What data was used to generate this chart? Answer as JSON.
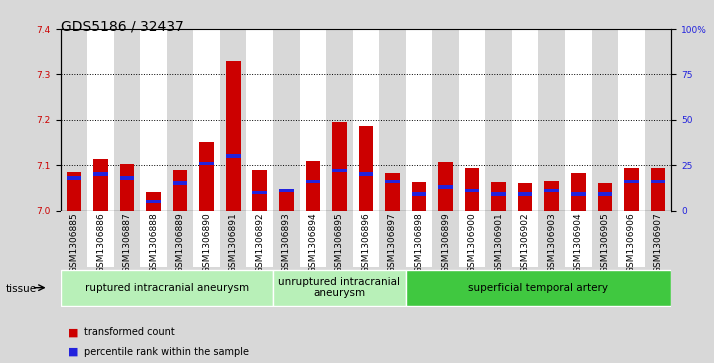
{
  "title": "GDS5186 / 32437",
  "samples": [
    "GSM1306885",
    "GSM1306886",
    "GSM1306887",
    "GSM1306888",
    "GSM1306889",
    "GSM1306890",
    "GSM1306891",
    "GSM1306892",
    "GSM1306893",
    "GSM1306894",
    "GSM1306895",
    "GSM1306896",
    "GSM1306897",
    "GSM1306898",
    "GSM1306899",
    "GSM1306900",
    "GSM1306901",
    "GSM1306902",
    "GSM1306903",
    "GSM1306904",
    "GSM1306905",
    "GSM1306906",
    "GSM1306907"
  ],
  "transformed_count": [
    7.085,
    7.113,
    7.102,
    7.04,
    7.09,
    7.152,
    7.33,
    7.09,
    7.04,
    7.11,
    7.195,
    7.187,
    7.083,
    7.063,
    7.107,
    7.093,
    7.063,
    7.06,
    7.065,
    7.082,
    7.06,
    7.093,
    7.093
  ],
  "percentile_rank": [
    18,
    20,
    18,
    5,
    15,
    26,
    30,
    10,
    11,
    16,
    22,
    20,
    16,
    9,
    13,
    11,
    9,
    9,
    11,
    9,
    9,
    16,
    16
  ],
  "ylim_left": [
    7.0,
    7.4
  ],
  "ylim_right": [
    0,
    100
  ],
  "yticks_left": [
    7.0,
    7.1,
    7.2,
    7.3,
    7.4
  ],
  "yticks_right": [
    0,
    25,
    50,
    75,
    100
  ],
  "ytick_labels_right": [
    "0",
    "25",
    "50",
    "75",
    "100%"
  ],
  "groups": [
    {
      "label": "ruptured intracranial aneurysm",
      "start": 0,
      "end": 8,
      "color": "#b8f0b8"
    },
    {
      "label": "unruptured intracranial\naneurysm",
      "start": 8,
      "end": 13,
      "color": "#b8f0b8"
    },
    {
      "label": "superficial temporal artery",
      "start": 13,
      "end": 23,
      "color": "#40c840"
    }
  ],
  "bar_color": "#CC0000",
  "percentile_color": "#2222DD",
  "bar_width": 0.55,
  "background_color": "#D8D8D8",
  "plot_bg_color": "#FFFFFF",
  "col_bg_even": "#D8D8D8",
  "col_bg_odd": "#FFFFFF",
  "title_fontsize": 10,
  "tick_fontsize": 6.5,
  "ylabel_left_color": "#CC0000",
  "ylabel_right_color": "#2222DD",
  "group_label_fontsize": 7.5,
  "legend_fontsize": 7,
  "tissue_label": "tissue"
}
